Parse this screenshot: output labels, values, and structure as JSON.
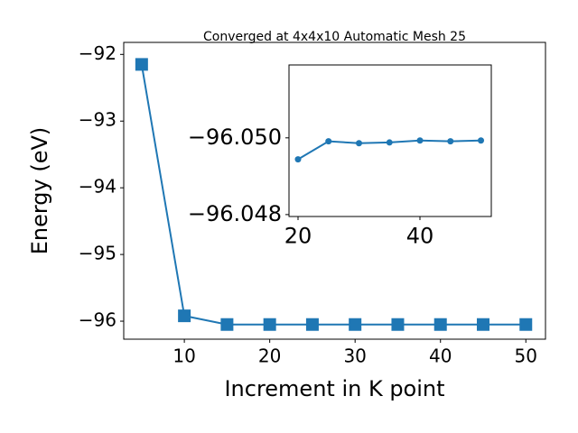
{
  "chart_data": [
    {
      "type": "line",
      "title": "Converged at 4x4x10 Automatic Mesh 25",
      "x_label": "Increment in K point",
      "y_label": "Energy (eV)",
      "x": [
        5,
        10,
        15,
        20,
        25,
        30,
        35,
        40,
        45,
        50
      ],
      "series": [
        {
          "color": "#1f77b4",
          "marker": "square",
          "values": [
            -92.15,
            -95.92,
            -96.05,
            -96.05,
            -96.05,
            -96.05,
            -96.05,
            -96.05,
            -96.05,
            -96.05
          ]
        }
      ],
      "xlim": [
        2.9,
        52.3
      ],
      "ylim": [
        -96.27,
        -91.82
      ],
      "xticks": [
        10,
        20,
        30,
        40,
        50
      ],
      "yticks": [
        {
          "value": -92,
          "label": "−92"
        },
        {
          "value": -93,
          "label": "−93"
        },
        {
          "value": -94,
          "label": "−94"
        },
        {
          "value": -95,
          "label": "−95"
        },
        {
          "value": -96,
          "label": "−96"
        }
      ]
    },
    {
      "type": "line",
      "x": [
        20,
        25,
        30,
        35,
        40,
        45,
        50
      ],
      "series": [
        {
          "color": "#1f77b4",
          "marker": "circle",
          "values": [
            -96.04944,
            -96.04991,
            -96.04986,
            -96.04988,
            -96.04993,
            -96.04991,
            -96.04993
          ]
        }
      ],
      "xlim": [
        18.52,
        51.7
      ],
      "ylim": [
        -96.04795,
        -96.0519
      ],
      "xticks": [
        20,
        40
      ],
      "yticks": [
        {
          "value": -96.05,
          "label": "−96.050"
        },
        {
          "value": -96.048,
          "label": "−96.048"
        }
      ]
    }
  ]
}
